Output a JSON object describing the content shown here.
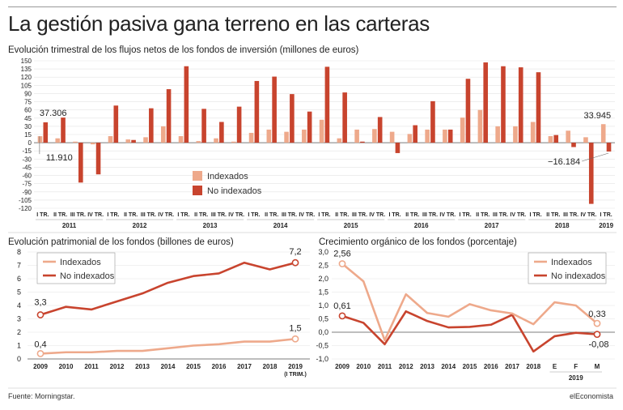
{
  "header": {
    "title": "La gestión pasiva gana terreno en las carteras",
    "footer_left": "Fuente: Morningstar.",
    "footer_right": "elEconomista"
  },
  "colors": {
    "indexados": "#EEA98B",
    "no_indexados": "#C8442E"
  },
  "chart_data": [
    {
      "type": "bar",
      "title": "Evolución trimestral de los flujos netos de los fondos de inversión (millones de euros)",
      "quarters": [
        "I TR.",
        "II TR.",
        "III TR.",
        "IV TR.",
        "I TR.",
        "II TR.",
        "III TR.",
        "IV TR.",
        "I TR.",
        "II TR.",
        "III TR.",
        "IV TR.",
        "I TR.",
        "II TR.",
        "III TR.",
        "IV TR.",
        "I TR.",
        "II TR.",
        "III TR.",
        "IV TR.",
        "I TR.",
        "II TR.",
        "III TR.",
        "IV TR.",
        "I TR.",
        "II TR.",
        "III TR.",
        "IV TR.",
        "I TR.",
        "II TR.",
        "III TR.",
        "IV TR.",
        "I TR."
      ],
      "years": [
        {
          "label": "2011",
          "start": 0,
          "count": 4
        },
        {
          "label": "2012",
          "start": 4,
          "count": 4
        },
        {
          "label": "2013",
          "start": 8,
          "count": 4
        },
        {
          "label": "2014",
          "start": 12,
          "count": 4
        },
        {
          "label": "2015",
          "start": 16,
          "count": 4
        },
        {
          "label": "2016",
          "start": 20,
          "count": 4
        },
        {
          "label": "2017",
          "start": 24,
          "count": 4
        },
        {
          "label": "2018",
          "start": 28,
          "count": 4
        },
        {
          "label": "2019",
          "start": 32,
          "count": 1
        }
      ],
      "series": [
        {
          "name": "Indexados",
          "values": [
            11.9,
            8,
            2,
            -3,
            12,
            6,
            10,
            30,
            12,
            3,
            8,
            2,
            18,
            24,
            20,
            24,
            42,
            8,
            24,
            25,
            20,
            16,
            24,
            24,
            46,
            60,
            30,
            30,
            38,
            12,
            22,
            10,
            33.945
          ]
        },
        {
          "name": "No indexados",
          "values": [
            37.306,
            46,
            -73,
            -58,
            68,
            5,
            63,
            98,
            140,
            62,
            38,
            66,
            113,
            121,
            89,
            57,
            139,
            92,
            2,
            47,
            -19,
            32,
            76,
            24,
            117,
            147,
            140,
            138,
            129,
            14,
            -8,
            -112,
            -16.184
          ]
        }
      ],
      "yticks": [
        150,
        135,
        120,
        105,
        90,
        75,
        60,
        45,
        30,
        15,
        0,
        -15,
        -30,
        -45,
        -60,
        -75,
        -90,
        -105,
        -120
      ],
      "ylim": [
        -120,
        150
      ],
      "annotations": [
        {
          "text": "37.306",
          "index": 0,
          "series": "No indexados"
        },
        {
          "text": "11.910",
          "index": 0,
          "series": "Indexados"
        },
        {
          "text": "33.945",
          "index": 32,
          "series": "Indexados"
        },
        {
          "text": "−16.184",
          "index": 32,
          "series": "No indexados"
        }
      ],
      "legend": [
        "Indexados",
        "No indexados"
      ]
    },
    {
      "type": "line",
      "title": "Evolución patrimonial de los fondos (billones de euros)",
      "x": [
        "2009",
        "2010",
        "2011",
        "2012",
        "2013",
        "2014",
        "2015",
        "2016",
        "2017",
        "2018",
        "2019"
      ],
      "x_sublabel": "(I TRIM.)",
      "series": [
        {
          "name": "Indexados",
          "values": [
            0.4,
            0.5,
            0.5,
            0.6,
            0.6,
            0.8,
            1.0,
            1.1,
            1.3,
            1.3,
            1.5
          ]
        },
        {
          "name": "No indexados",
          "values": [
            3.3,
            3.9,
            3.7,
            4.3,
            4.9,
            5.7,
            6.2,
            6.4,
            7.2,
            6.7,
            7.2
          ]
        }
      ],
      "yticks": [
        0,
        1,
        2,
        3,
        4,
        5,
        6,
        7,
        8
      ],
      "ylim": [
        0,
        8
      ],
      "annotations": [
        {
          "text": "3,3",
          "index": 0,
          "series": "No indexados"
        },
        {
          "text": "0,4",
          "index": 0,
          "series": "Indexados"
        },
        {
          "text": "7,2",
          "index": 10,
          "series": "No indexados"
        },
        {
          "text": "1,5",
          "index": 10,
          "series": "Indexados"
        }
      ],
      "legend": [
        "Indexados",
        "No indexados"
      ]
    },
    {
      "type": "line",
      "title": "Crecimiento orgánico de los fondos (porcentaje)",
      "x": [
        "2009",
        "2010",
        "2011",
        "2012",
        "2013",
        "2014",
        "2015",
        "2016",
        "2017",
        "2018",
        "E",
        "F",
        "M"
      ],
      "year_group": {
        "label": "2019",
        "start": 10,
        "count": 3
      },
      "series": [
        {
          "name": "Indexados",
          "values": [
            2.56,
            1.9,
            -0.3,
            1.42,
            0.72,
            0.58,
            1.05,
            0.82,
            0.7,
            0.3,
            1.12,
            1.0,
            0.33
          ]
        },
        {
          "name": "No indexados",
          "values": [
            0.61,
            0.35,
            -0.45,
            0.78,
            0.42,
            0.18,
            0.2,
            0.28,
            0.65,
            -0.72,
            -0.15,
            -0.02,
            -0.08
          ]
        }
      ],
      "yticks": [
        "3,0",
        "2,5",
        "2,0",
        "1,5",
        "1,0",
        "0,5",
        "0,0",
        "-0,5",
        "-1,0"
      ],
      "ylim": [
        -1.0,
        3.0
      ],
      "annotations": [
        {
          "text": "2,56",
          "index": 0,
          "series": "Indexados"
        },
        {
          "text": "0,61",
          "index": 0,
          "series": "No indexados"
        },
        {
          "text": "0,33",
          "index": 12,
          "series": "Indexados"
        },
        {
          "text": "-0,08",
          "index": 12,
          "series": "No indexados"
        }
      ],
      "legend": [
        "Indexados",
        "No indexados"
      ]
    }
  ]
}
